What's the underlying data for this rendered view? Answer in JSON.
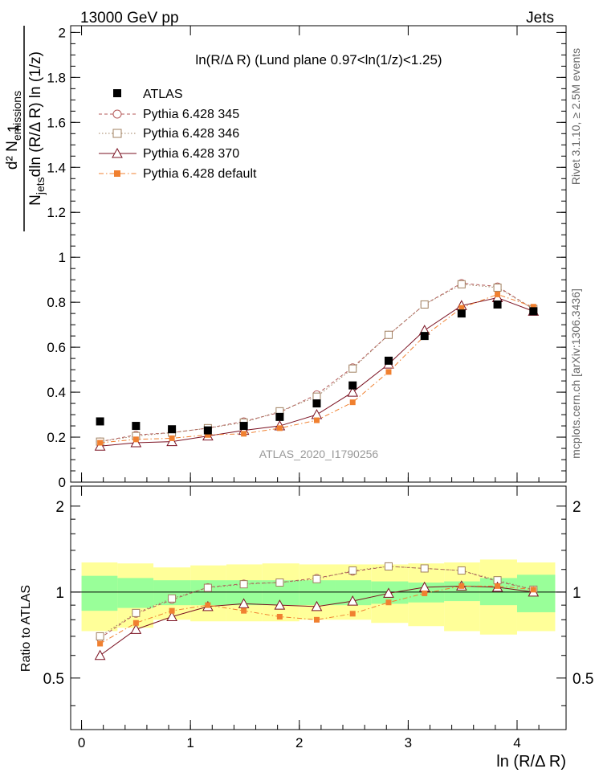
{
  "header": {
    "left": "13000 GeV pp",
    "right": "Jets"
  },
  "side_labels": {
    "rivet": "Rivet 3.1.10, ≥ 2.5M events",
    "mcplots": "mcplots.cern.ch [arXiv:1306.3436]"
  },
  "watermark": "ATLAS_2020_I1790256",
  "colors": {
    "data": "#000000",
    "pythia345": "#b45a5a",
    "pythia346": "#a08060",
    "pythia370": "#7a1020",
    "pythia_default": "#f08030",
    "band_inner": "#99ff99",
    "band_outer": "#ffff99"
  },
  "chart_data": {
    "type": "line",
    "title": "ln(R/Δ R) (Lund plane 0.97<ln(1/z)<1.25)",
    "xlabel": "ln (R/Δ R)",
    "ylabel_main": {
      "numerator": "d² N",
      "numerator_sub": "emissions",
      "prefix_one": "1",
      "denominator": "N",
      "denominator_sub": "jets",
      "denominator_rest": "dln (R/Δ R) ln (1/z)"
    },
    "ylabel_ratio": "Ratio to ATLAS",
    "xlim": [
      -0.1,
      4.45
    ],
    "ylim_main": [
      0,
      2.03
    ],
    "ylim_ratio": [
      0.33,
      2.35
    ],
    "x_ticks": [
      "0",
      "1",
      "2",
      "3",
      "4"
    ],
    "y_ticks_main": [
      "0",
      "0.2",
      "0.4",
      "0.6",
      "0.8",
      "1",
      "1.2",
      "1.4",
      "1.6",
      "1.8",
      "2"
    ],
    "y_ticks_ratio": [
      "0.5",
      "1",
      "2"
    ],
    "x": [
      0.17,
      0.5,
      0.83,
      1.16,
      1.49,
      1.82,
      2.16,
      2.49,
      2.82,
      3.15,
      3.49,
      3.82,
      4.15
    ],
    "bin_edges": [
      0.0,
      0.33,
      0.66,
      1.0,
      1.33,
      1.66,
      2.0,
      2.33,
      2.66,
      3.0,
      3.33,
      3.66,
      4.0,
      4.35
    ],
    "legend": [
      "ATLAS",
      "Pythia 6.428 345",
      "Pythia 6.428 346",
      "Pythia 6.428 370",
      "Pythia 6.428 default"
    ],
    "data": {
      "name": "ATLAS",
      "values": [
        0.27,
        0.25,
        0.235,
        0.23,
        0.25,
        0.29,
        0.35,
        0.43,
        0.54,
        0.65,
        0.75,
        0.79,
        0.76
      ]
    },
    "series": [
      {
        "name": "Pythia 6.428 345",
        "style": "dashed",
        "marker": "open-circle",
        "values": [
          0.18,
          0.21,
          0.22,
          0.24,
          0.27,
          0.31,
          0.39,
          0.51,
          0.655,
          0.79,
          0.885,
          0.87,
          0.77
        ],
        "ratio": [
          0.69,
          0.84,
          0.94,
          1.04,
          1.07,
          1.08,
          1.12,
          1.18,
          1.23,
          1.21,
          1.19,
          1.09,
          1.02
        ]
      },
      {
        "name": "Pythia 6.428 346",
        "style": "dotted",
        "marker": "open-square",
        "values": [
          0.18,
          0.205,
          0.22,
          0.24,
          0.265,
          0.315,
          0.38,
          0.505,
          0.655,
          0.79,
          0.88,
          0.865,
          0.77
        ],
        "ratio": [
          0.7,
          0.845,
          0.95,
          1.035,
          1.065,
          1.08,
          1.11,
          1.19,
          1.23,
          1.21,
          1.19,
          1.1,
          1.02
        ]
      },
      {
        "name": "Pythia 6.428 370",
        "style": "solid",
        "marker": "open-triangle",
        "values": [
          0.16,
          0.175,
          0.18,
          0.205,
          0.23,
          0.25,
          0.3,
          0.4,
          0.525,
          0.675,
          0.785,
          0.82,
          0.76
        ],
        "ratio": [
          0.6,
          0.74,
          0.82,
          0.89,
          0.91,
          0.9,
          0.89,
          0.93,
          0.99,
          1.04,
          1.05,
          1.04,
          1.0
        ]
      },
      {
        "name": "Pythia 6.428 default",
        "style": "dashdot",
        "marker": "filled-square",
        "values": [
          0.175,
          0.19,
          0.195,
          0.21,
          0.215,
          0.24,
          0.275,
          0.355,
          0.49,
          0.65,
          0.775,
          0.835,
          0.78
        ],
        "ratio": [
          0.66,
          0.78,
          0.86,
          0.9,
          0.86,
          0.82,
          0.8,
          0.84,
          0.92,
          0.99,
          1.05,
          1.05,
          1.02
        ]
      }
    ],
    "band_inner": {
      "lo": [
        0.86,
        0.88,
        0.9,
        0.9,
        0.9,
        0.9,
        0.9,
        0.9,
        0.91,
        0.92,
        0.93,
        0.9,
        0.85
      ],
      "hi": [
        1.14,
        1.12,
        1.1,
        1.1,
        1.1,
        1.1,
        1.1,
        1.1,
        1.09,
        1.08,
        1.09,
        1.12,
        1.15
      ]
    },
    "band_outer": {
      "lo": [
        0.73,
        0.75,
        0.8,
        0.79,
        0.79,
        0.79,
        0.8,
        0.8,
        0.78,
        0.76,
        0.73,
        0.71,
        0.73
      ],
      "hi": [
        1.27,
        1.26,
        1.22,
        1.24,
        1.25,
        1.26,
        1.25,
        1.25,
        1.25,
        1.26,
        1.27,
        1.3,
        1.27
      ]
    }
  }
}
